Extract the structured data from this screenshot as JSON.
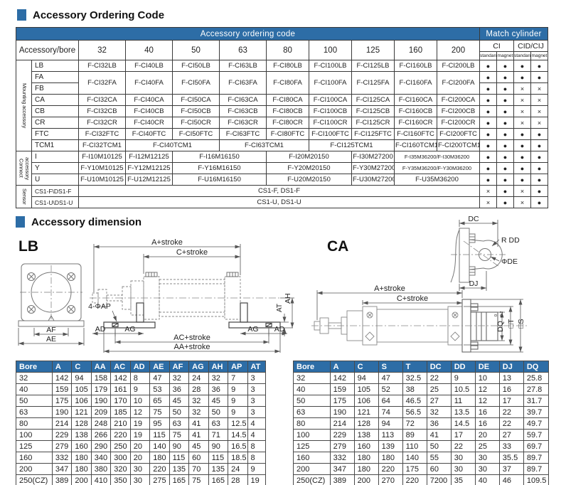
{
  "meta": {
    "accent_color": "#2d6da6"
  },
  "sections": {
    "ordering": {
      "title": "Accessory Ordering Code"
    },
    "dimension": {
      "title": "Accessory dimension"
    }
  },
  "ordering_table": {
    "cols": [
      22,
      66,
      66,
      66,
      66,
      66,
      60,
      60,
      60,
      60,
      60,
      24,
      24,
      24,
      24
    ],
    "rows": [
      [
        {
          "t": "Accessory ordering code",
          "c": 11,
          "cls": "hd"
        },
        {
          "t": "Match cylinder",
          "c": 4,
          "cls": "hd"
        }
      ],
      [
        {
          "t": "Accessory/bore",
          "c": 2,
          "r": 2,
          "cls": "ab"
        },
        {
          "t": "32",
          "r": 2,
          "cls": "bh"
        },
        {
          "t": "40",
          "r": 2,
          "cls": "bh"
        },
        {
          "t": "50",
          "r": 2,
          "cls": "bh"
        },
        {
          "t": "63",
          "r": 2,
          "cls": "bh"
        },
        {
          "t": "80",
          "r": 2,
          "cls": "bh"
        },
        {
          "t": "100",
          "r": 2,
          "cls": "bh"
        },
        {
          "t": "125",
          "r": 2,
          "cls": "bh"
        },
        {
          "t": "160",
          "r": 2,
          "cls": "bh"
        },
        {
          "t": "200",
          "r": 2,
          "cls": "bh"
        },
        {
          "t": "CI",
          "c": 2,
          "cls": "ci"
        },
        {
          "t": "CID/CIJ",
          "c": 2,
          "cls": "ci"
        }
      ],
      [
        {
          "t": "standard",
          "cls": "tn"
        },
        {
          "t": "magnet",
          "cls": "tn"
        },
        {
          "t": "standard",
          "cls": "tn"
        },
        {
          "t": "magnet",
          "cls": "tn"
        }
      ],
      [
        {
          "t": "Mounting accessory",
          "r": 8,
          "cls": "vl"
        },
        {
          "t": "LB",
          "cls": "nm"
        },
        {
          "t": "F-CI32LB"
        },
        {
          "t": "F-CI40LB"
        },
        {
          "t": "F-CI50LB"
        },
        {
          "t": "F-CI63LB"
        },
        {
          "t": "F-CI80LB"
        },
        {
          "t": "F-CI100LB"
        },
        {
          "t": "F-CI125LB"
        },
        {
          "t": "F-CI160LB"
        },
        {
          "t": "F-CI200LB"
        },
        {
          "t": "●",
          "cls": "mk"
        },
        {
          "t": "●",
          "cls": "mk"
        },
        {
          "t": "●",
          "cls": "mk"
        },
        {
          "t": "●",
          "cls": "mk"
        }
      ],
      [
        {
          "t": "FA",
          "cls": "nm"
        },
        {
          "t": "F-CI32FA",
          "r": 2
        },
        {
          "t": "F-CI40FA",
          "r": 2
        },
        {
          "t": "F-CI50FA",
          "r": 2
        },
        {
          "t": "F-CI63FA",
          "r": 2
        },
        {
          "t": "F-CI80FA",
          "r": 2
        },
        {
          "t": "F-CI100FA",
          "r": 2
        },
        {
          "t": "F-CI125FA",
          "r": 2
        },
        {
          "t": "F-CI160FA",
          "r": 2
        },
        {
          "t": "F-CI200FA",
          "r": 2
        },
        {
          "t": "●",
          "cls": "mk"
        },
        {
          "t": "●",
          "cls": "mk"
        },
        {
          "t": "●",
          "cls": "mk"
        },
        {
          "t": "●",
          "cls": "mk"
        }
      ],
      [
        {
          "t": "FB",
          "cls": "nm"
        },
        {
          "t": "●",
          "cls": "mk"
        },
        {
          "t": "●",
          "cls": "mk"
        },
        {
          "t": "×",
          "cls": "mk"
        },
        {
          "t": "×",
          "cls": "mk"
        }
      ],
      [
        {
          "t": "CA",
          "cls": "nm"
        },
        {
          "t": "F-CI32CA"
        },
        {
          "t": "F-CI40CA"
        },
        {
          "t": "F-CI50CA"
        },
        {
          "t": "F-CI63CA"
        },
        {
          "t": "F-CI80CA"
        },
        {
          "t": "F-CI100CA"
        },
        {
          "t": "F-CI125CA"
        },
        {
          "t": "F-CI160CA"
        },
        {
          "t": "F-CI200CA"
        },
        {
          "t": "●",
          "cls": "mk"
        },
        {
          "t": "●",
          "cls": "mk"
        },
        {
          "t": "×",
          "cls": "mk"
        },
        {
          "t": "×",
          "cls": "mk"
        }
      ],
      [
        {
          "t": "CB",
          "cls": "nm"
        },
        {
          "t": "F-CI32CB"
        },
        {
          "t": "F-CI40CB"
        },
        {
          "t": "F-CI50CB"
        },
        {
          "t": "F-CI63CB"
        },
        {
          "t": "F-CI80CB"
        },
        {
          "t": "F-CI100CB"
        },
        {
          "t": "F-CI125CB"
        },
        {
          "t": "F-CI160CB"
        },
        {
          "t": "F-CI200CB"
        },
        {
          "t": "●",
          "cls": "mk"
        },
        {
          "t": "●",
          "cls": "mk"
        },
        {
          "t": "×",
          "cls": "mk"
        },
        {
          "t": "×",
          "cls": "mk"
        }
      ],
      [
        {
          "t": "CR",
          "cls": "nm"
        },
        {
          "t": "F-CI32CR"
        },
        {
          "t": "F-CI40CR"
        },
        {
          "t": "F-CI50CR"
        },
        {
          "t": "F-CI63CR"
        },
        {
          "t": "F-CI80CR"
        },
        {
          "t": "F-CI100CR"
        },
        {
          "t": "F-CI125CR"
        },
        {
          "t": "F-CI160CR"
        },
        {
          "t": "F-CI200CR"
        },
        {
          "t": "●",
          "cls": "mk"
        },
        {
          "t": "●",
          "cls": "mk"
        },
        {
          "t": "×",
          "cls": "mk"
        },
        {
          "t": "×",
          "cls": "mk"
        }
      ],
      [
        {
          "t": "FTC",
          "cls": "nm"
        },
        {
          "t": "F-CI32FTC"
        },
        {
          "t": "F-CI40FTC"
        },
        {
          "t": "F-CI50FTC"
        },
        {
          "t": "F-CI63FTC"
        },
        {
          "t": "F-CI80FTC"
        },
        {
          "t": "F-CI100FTC"
        },
        {
          "t": "F-CI125FTC"
        },
        {
          "t": "F-CI160FTC"
        },
        {
          "t": "F-CI200FTC"
        },
        {
          "t": "●",
          "cls": "mk"
        },
        {
          "t": "●",
          "cls": "mk"
        },
        {
          "t": "●",
          "cls": "mk"
        },
        {
          "t": "●",
          "cls": "mk"
        }
      ],
      [
        {
          "t": "TCM1",
          "cls": "nm"
        },
        {
          "t": "F-CI32TCM1"
        },
        {
          "t": "F-CI40TCM1",
          "c": 2
        },
        {
          "t": "F-CI63TCM1",
          "c": 2
        },
        {
          "t": "F-CI125TCM1",
          "c": 2
        },
        {
          "t": "F-CI160TCM1"
        },
        {
          "t": "F-CI200TCM1"
        },
        {
          "t": "●",
          "cls": "mk"
        },
        {
          "t": "●",
          "cls": "mk"
        },
        {
          "t": "●",
          "cls": "mk"
        },
        {
          "t": "●",
          "cls": "mk"
        }
      ],
      [
        {
          "t": "Connect accessory",
          "r": 3,
          "cls": "vl"
        },
        {
          "t": "I",
          "cls": "nm"
        },
        {
          "t": "F-I10M10125"
        },
        {
          "t": "F-I12M12125"
        },
        {
          "t": "F-I16M16150",
          "c": 2
        },
        {
          "t": "F-I20M20150",
          "c": 2
        },
        {
          "t": "F-I30M27200"
        },
        {
          "t": "F-I35M36200/F-I30M36200",
          "c": 2,
          "cls": "sm"
        },
        {
          "t": "●",
          "cls": "mk"
        },
        {
          "t": "●",
          "cls": "mk"
        },
        {
          "t": "●",
          "cls": "mk"
        },
        {
          "t": "●",
          "cls": "mk"
        }
      ],
      [
        {
          "t": "Y",
          "cls": "nm"
        },
        {
          "t": "F-Y10M10125"
        },
        {
          "t": "F-Y12M12125"
        },
        {
          "t": "F-Y16M16150",
          "c": 2
        },
        {
          "t": "F-Y20M20150",
          "c": 2
        },
        {
          "t": "F-Y30M27200"
        },
        {
          "t": "F-Y35M36200/F-Y30M36200",
          "c": 2,
          "cls": "sm"
        },
        {
          "t": "●",
          "cls": "mk"
        },
        {
          "t": "●",
          "cls": "mk"
        },
        {
          "t": "●",
          "cls": "mk"
        },
        {
          "t": "●",
          "cls": "mk"
        }
      ],
      [
        {
          "t": "U",
          "cls": "nm"
        },
        {
          "t": "F-U10M10125"
        },
        {
          "t": "F-U12M12125"
        },
        {
          "t": "F-U16M16150",
          "c": 2
        },
        {
          "t": "F-U20M20150",
          "c": 2
        },
        {
          "t": "F-U30M27200"
        },
        {
          "t": "F-U35M36200",
          "c": 2
        },
        {
          "t": "●",
          "cls": "mk"
        },
        {
          "t": "●",
          "cls": "mk"
        },
        {
          "t": "●",
          "cls": "mk"
        },
        {
          "t": "●",
          "cls": "mk"
        }
      ],
      [
        {
          "t": "Sensor",
          "r": 2,
          "cls": "vl"
        },
        {
          "t": "CS1-F\\DS1-F",
          "cls": "nm sm2"
        },
        {
          "t": "CS1-F,  DS1-F",
          "c": 9
        },
        {
          "t": "×",
          "cls": "mk"
        },
        {
          "t": "●",
          "cls": "mk"
        },
        {
          "t": "×",
          "cls": "mk"
        },
        {
          "t": "●",
          "cls": "mk"
        }
      ],
      [
        {
          "t": "CS1-U\\DS1-U",
          "cls": "nm sm2"
        },
        {
          "t": "CS1-U,  DS1-U",
          "c": 9
        },
        {
          "t": "×",
          "cls": "mk"
        },
        {
          "t": "●",
          "cls": "mk"
        },
        {
          "t": "×",
          "cls": "mk"
        },
        {
          "t": "●",
          "cls": "mk"
        }
      ]
    ]
  },
  "lb": {
    "label": "LB",
    "dims": {
      "a": "A+stroke",
      "c": "C+stroke",
      "ap": "4-ΦAP",
      "ad": "AD",
      "ag": "AG",
      "ac": "AC+stroke",
      "aa": "AA+stroke",
      "at": "AT",
      "ah": "AH",
      "af": "AF",
      "ae": "AE"
    },
    "table": {
      "cols": [
        50,
        27,
        27,
        27,
        27,
        27,
        27,
        27,
        27,
        27,
        27,
        25
      ],
      "headers": [
        "Bore",
        "A",
        "C",
        "AA",
        "AC",
        "AD",
        "AE",
        "AF",
        "AG",
        "AH",
        "AP",
        "AT"
      ],
      "rows": [
        [
          "32",
          "142",
          "94",
          "158",
          "142",
          "8",
          "47",
          "32",
          "24",
          "32",
          "7",
          "3"
        ],
        [
          "40",
          "159",
          "105",
          "179",
          "161",
          "9",
          "53",
          "36",
          "28",
          "36",
          "9",
          "3"
        ],
        [
          "50",
          "175",
          "106",
          "190",
          "170",
          "10",
          "65",
          "45",
          "32",
          "45",
          "9",
          "3"
        ],
        [
          "63",
          "190",
          "121",
          "209",
          "185",
          "12",
          "75",
          "50",
          "32",
          "50",
          "9",
          "3"
        ],
        [
          "80",
          "214",
          "128",
          "248",
          "210",
          "19",
          "95",
          "63",
          "41",
          "63",
          "12.5",
          "4"
        ],
        [
          "100",
          "229",
          "138",
          "266",
          "220",
          "19",
          "115",
          "75",
          "41",
          "71",
          "14.5",
          "4"
        ],
        [
          "125",
          "279",
          "160",
          "290",
          "250",
          "20",
          "140",
          "90",
          "45",
          "90",
          "16.5",
          "8"
        ],
        [
          "160",
          "332",
          "180",
          "340",
          "300",
          "20",
          "180",
          "115",
          "60",
          "115",
          "18.5",
          "8"
        ],
        [
          "200",
          "347",
          "180",
          "380",
          "320",
          "30",
          "220",
          "135",
          "70",
          "135",
          "24",
          "9"
        ],
        [
          "250(CZ)",
          "389",
          "200",
          "410",
          "350",
          "30",
          "275",
          "165",
          "75",
          "165",
          "28",
          "19"
        ]
      ]
    }
  },
  "ca": {
    "label": "CA",
    "dims": {
      "dc": "DC",
      "rdd": "R DD",
      "de": "ΦDE",
      "dj": "DJ",
      "a": "A+stroke",
      "c": "C+stroke",
      "dq": "DQ",
      "tol0": "0",
      "tol1": "-0.2",
      "t": "□T",
      "s": "□S"
    },
    "table": {
      "cols": [
        50,
        33,
        33,
        33,
        33,
        33,
        33,
        33,
        33,
        34
      ],
      "headers": [
        "Bore",
        "A",
        "C",
        "S",
        "T",
        "DC",
        "DD",
        "DE",
        "DJ",
        "DQ"
      ],
      "rows": [
        [
          "32",
          "142",
          "94",
          "47",
          "32.5",
          "22",
          "9",
          "10",
          "13",
          "25.8"
        ],
        [
          "40",
          "159",
          "105",
          "52",
          "38",
          "25",
          "10.5",
          "12",
          "16",
          "27.8"
        ],
        [
          "50",
          "175",
          "106",
          "64",
          "46.5",
          "27",
          "11",
          "12",
          "17",
          "31.7"
        ],
        [
          "63",
          "190",
          "121",
          "74",
          "56.5",
          "32",
          "13.5",
          "16",
          "22",
          "39.7"
        ],
        [
          "80",
          "214",
          "128",
          "94",
          "72",
          "36",
          "14.5",
          "16",
          "22",
          "49.7"
        ],
        [
          "100",
          "229",
          "138",
          "113",
          "89",
          "41",
          "17",
          "20",
          "27",
          "59.7"
        ],
        [
          "125",
          "279",
          "160",
          "139",
          "110",
          "50",
          "22",
          "25",
          "33",
          "69.7"
        ],
        [
          "160",
          "332",
          "180",
          "180",
          "140",
          "55",
          "30",
          "30",
          "35.5",
          "89.7"
        ],
        [
          "200",
          "347",
          "180",
          "220",
          "175",
          "60",
          "30",
          "30",
          "37",
          "89.7"
        ],
        [
          "250(CZ)",
          "389",
          "200",
          "270",
          "220",
          "7200",
          "35",
          "40",
          "46",
          "109.5"
        ]
      ]
    }
  }
}
